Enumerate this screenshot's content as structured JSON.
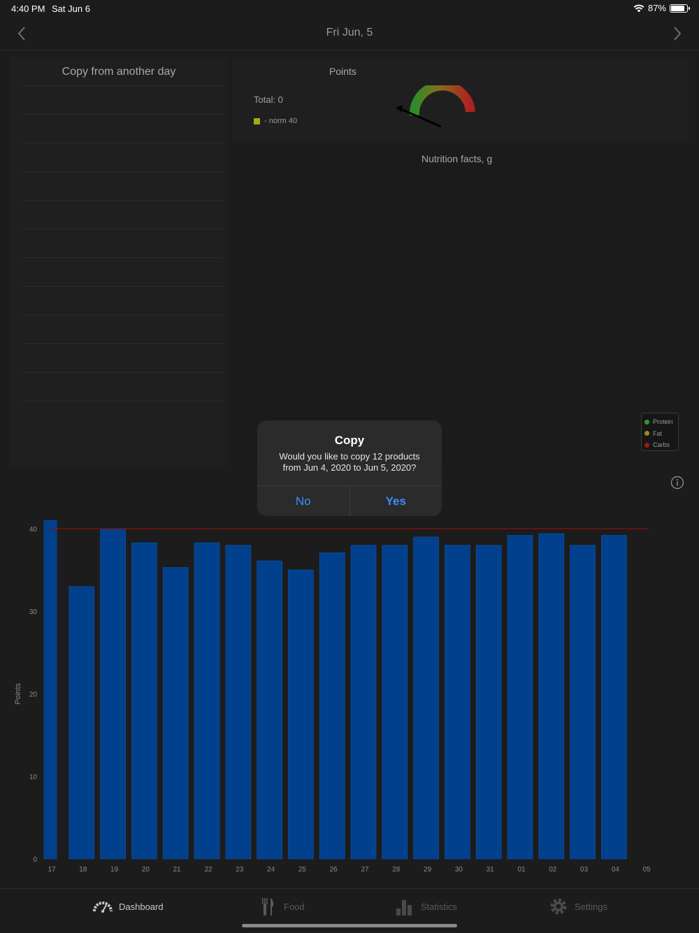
{
  "status_bar": {
    "time": "4:40 PM",
    "date": "Sat Jun 6",
    "battery": "87%"
  },
  "nav": {
    "title": "Fri  Jun, 5",
    "prev_icon": "chevron-left-icon",
    "next_icon": "chevron-right-icon"
  },
  "copy_panel": {
    "title": "Copy from another day",
    "row_count": 12
  },
  "points": {
    "title": "Points",
    "total_label": "Total: 0",
    "norm_label": "- norm 40",
    "norm_color": "#a4a814"
  },
  "nutrition": {
    "title": "Nutrition facts, g",
    "legend": [
      {
        "label": "Protein",
        "color": "#2f9a2f"
      },
      {
        "label": "Fat",
        "color": "#9a8a20"
      },
      {
        "label": "Carbs",
        "color": "#a01818"
      }
    ]
  },
  "info_icon": "info-icon",
  "chart_data": {
    "type": "bar",
    "ylabel": "Points",
    "xlabel": "",
    "title": "",
    "ylim": [
      0,
      40
    ],
    "yticks": [
      0,
      10,
      20,
      30,
      40
    ],
    "categories": [
      "17",
      "18",
      "19",
      "20",
      "21",
      "22",
      "23",
      "24",
      "25",
      "26",
      "27",
      "28",
      "29",
      "30",
      "31",
      "01",
      "02",
      "03",
      "04",
      "05"
    ],
    "values": [
      41,
      33,
      40,
      38.3,
      35.3,
      38.3,
      38,
      36.1,
      35,
      37.1,
      38,
      38,
      39,
      38,
      38,
      39.2,
      39.4,
      38,
      39.2,
      0
    ],
    "norm_line": 40,
    "bar_color": "#01408c",
    "norm_color": "#8a1010",
    "grid": false
  },
  "alert": {
    "title": "Copy",
    "message_line1": "Would you like to copy 12 products",
    "message_line2": "from Jun 4, 2020 to Jun 5, 2020?",
    "no_label": "No",
    "yes_label": "Yes"
  },
  "tabs": [
    {
      "label": "Dashboard",
      "icon": "gauge-icon",
      "active": true
    },
    {
      "label": "Food",
      "icon": "fork-knife-icon",
      "active": false
    },
    {
      "label": "Statistics",
      "icon": "bar-chart-icon",
      "active": false
    },
    {
      "label": "Settings",
      "icon": "gear-icon",
      "active": false
    }
  ]
}
